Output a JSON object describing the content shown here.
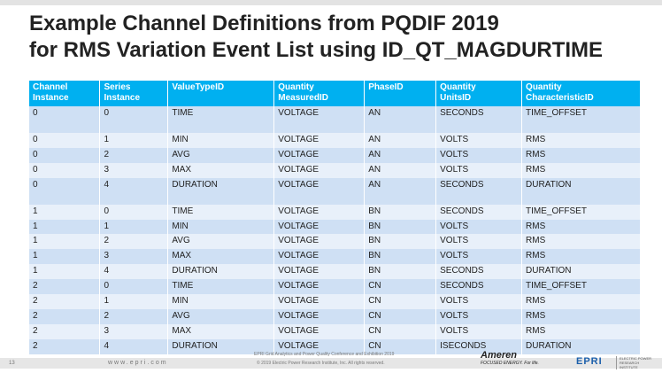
{
  "title_line1": "Example Channel Definitions from PQDIF 2019",
  "title_line2": "for RMS Variation Event List using ID_QT_MAGDURTIME",
  "headers": [
    [
      "Channel",
      "Instance"
    ],
    [
      "Series",
      "Instance"
    ],
    [
      "ValueTypeID",
      ""
    ],
    [
      "Quantity",
      "MeasuredID"
    ],
    [
      "PhaseID",
      ""
    ],
    [
      "Quantity",
      "UnitsID"
    ],
    [
      "Quantity",
      "CharacteristicID"
    ]
  ],
  "rows": [
    [
      "0",
      "0",
      "TIME",
      "VOLTAGE",
      "AN",
      "SECONDS",
      "TIME_OFFSET"
    ],
    [
      "0",
      "1",
      "MIN",
      "VOLTAGE",
      "AN",
      "VOLTS",
      "RMS"
    ],
    [
      "0",
      "2",
      "AVG",
      "VOLTAGE",
      "AN",
      "VOLTS",
      "RMS"
    ],
    [
      "0",
      "3",
      "MAX",
      "VOLTAGE",
      "AN",
      "VOLTS",
      "RMS"
    ],
    [
      "0",
      "4",
      "DURATION",
      "VOLTAGE",
      "AN",
      "SECONDS",
      "DURATION"
    ],
    [
      "1",
      "0",
      "TIME",
      "VOLTAGE",
      "BN",
      "SECONDS",
      "TIME_OFFSET"
    ],
    [
      "1",
      "1",
      "MIN",
      "VOLTAGE",
      "BN",
      "VOLTS",
      "RMS"
    ],
    [
      "1",
      "2",
      "AVG",
      "VOLTAGE",
      "BN",
      "VOLTS",
      "RMS"
    ],
    [
      "1",
      "3",
      "MAX",
      "VOLTAGE",
      "BN",
      "VOLTS",
      "RMS"
    ],
    [
      "1",
      "4",
      "DURATION",
      "VOLTAGE",
      "BN",
      "SECONDS",
      "DURATION"
    ],
    [
      "2",
      "0",
      "TIME",
      "VOLTAGE",
      "CN",
      "SECONDS",
      "TIME_OFFSET"
    ],
    [
      "2",
      "1",
      "MIN",
      "VOLTAGE",
      "CN",
      "VOLTS",
      "RMS"
    ],
    [
      "2",
      "2",
      "AVG",
      "VOLTAGE",
      "CN",
      "VOLTS",
      "RMS"
    ],
    [
      "2",
      "3",
      "MAX",
      "VOLTAGE",
      "CN",
      "VOLTS",
      "RMS"
    ],
    [
      "2",
      "4",
      "DURATION",
      "VOLTAGE",
      "CN",
      "ISECONDS",
      "DURATION"
    ]
  ],
  "footer": {
    "page": "13",
    "url": "www.epri.com",
    "conference": "EPRI Grid Analytics and Power Quality Conference and Exhibition 2019",
    "copyright": "© 2019 Electric Power Research Institute, Inc. All rights reserved.",
    "ameren": "Ameren",
    "ameren_tag": "FOCUSED ENERGY. For life.",
    "epri": "EPRI",
    "epri_full": "ELECTRIC POWER RESEARCH INSTITUTE"
  }
}
